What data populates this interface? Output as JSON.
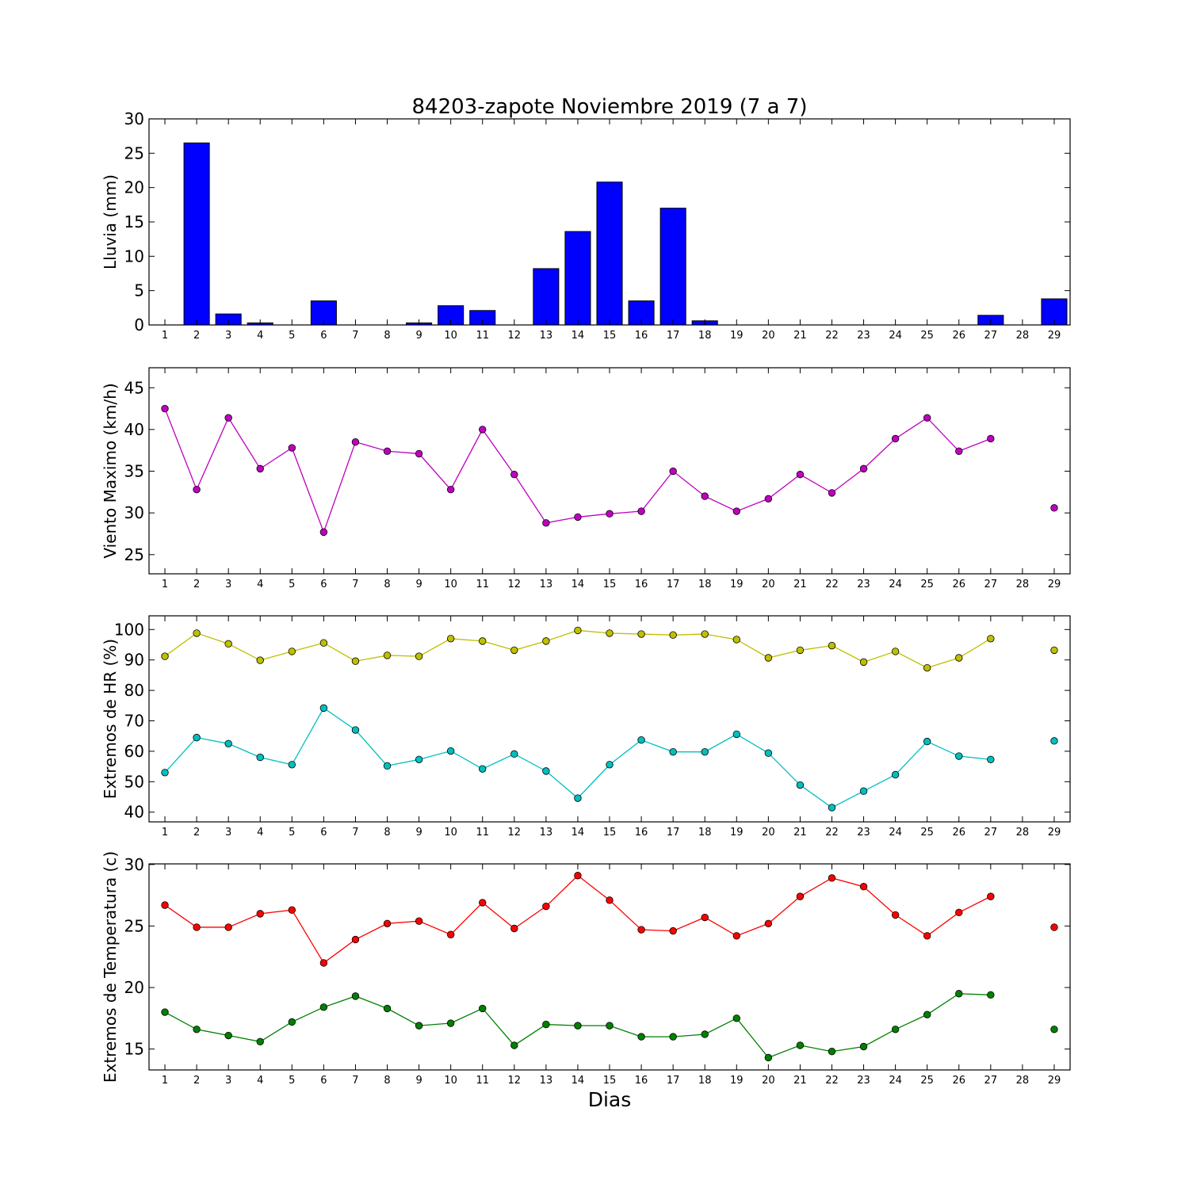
{
  "title": "84203-zapote Noviembre 2019  (7 a 7)",
  "xlabel": "Dias",
  "days": [
    1,
    2,
    3,
    4,
    5,
    6,
    7,
    8,
    9,
    10,
    11,
    12,
    13,
    14,
    15,
    16,
    17,
    18,
    19,
    20,
    21,
    22,
    23,
    24,
    25,
    26,
    27,
    28,
    29
  ],
  "colors": {
    "rain": "#0000ff",
    "wind": "#bf00bf",
    "hr_max": "#bfbf00",
    "hr_min": "#00bfbf",
    "temp_max": "#ff0000",
    "temp_min": "#008000"
  },
  "chart_data": [
    {
      "type": "bar",
      "title": "84203-zapote Noviembre 2019  (7 a 7)",
      "ylabel": "Lluvia (mm)",
      "xlabel": "",
      "ylim": [
        0,
        30
      ],
      "yticks": [
        0,
        5,
        10,
        15,
        20,
        25,
        30
      ],
      "categories": [
        1,
        2,
        3,
        4,
        5,
        6,
        7,
        8,
        9,
        10,
        11,
        12,
        13,
        14,
        15,
        16,
        17,
        18,
        19,
        20,
        21,
        22,
        23,
        24,
        25,
        26,
        27,
        28,
        29
      ],
      "values": [
        0,
        26.5,
        1.6,
        0.3,
        0,
        3.5,
        0,
        0,
        0.3,
        2.8,
        2.1,
        0,
        8.2,
        13.6,
        20.8,
        3.5,
        17.0,
        0.6,
        0,
        0,
        0,
        0,
        0,
        0,
        0,
        0,
        1.4,
        0,
        3.8
      ]
    },
    {
      "type": "line",
      "ylabel": "Viento Maximo (km/h)",
      "xlabel": "",
      "ylim": [
        22.7,
        47.4
      ],
      "yticks": [
        25,
        30,
        35,
        40,
        45
      ],
      "x": [
        1,
        2,
        3,
        4,
        5,
        6,
        7,
        8,
        9,
        10,
        11,
        12,
        13,
        14,
        15,
        16,
        17,
        18,
        19,
        20,
        21,
        22,
        23,
        24,
        25,
        26,
        27,
        28,
        29
      ],
      "series": [
        {
          "values": [
            42.5,
            32.8,
            41.4,
            35.3,
            37.8,
            27.7,
            38.5,
            37.4,
            37.1,
            32.8,
            40.0,
            34.6,
            28.8,
            29.5,
            29.9,
            30.2,
            35.0,
            32.0,
            30.2,
            31.7,
            34.6,
            32.4,
            35.3,
            38.9,
            41.4,
            37.4,
            38.9,
            null,
            30.6
          ]
        }
      ]
    },
    {
      "type": "line",
      "ylabel": "Extremos de HR (%)",
      "xlabel": "",
      "ylim": [
        36.8,
        104.5
      ],
      "yticks": [
        40,
        50,
        60,
        70,
        80,
        90,
        100
      ],
      "x": [
        1,
        2,
        3,
        4,
        5,
        6,
        7,
        8,
        9,
        10,
        11,
        12,
        13,
        14,
        15,
        16,
        17,
        18,
        19,
        20,
        21,
        22,
        23,
        24,
        25,
        26,
        27,
        28,
        29
      ],
      "series": [
        {
          "values": [
            91.2,
            98.8,
            95.3,
            89.9,
            92.8,
            95.6,
            89.6,
            91.5,
            91.2,
            97.0,
            96.2,
            93.2,
            96.2,
            99.7,
            98.8,
            98.5,
            98.2,
            98.5,
            96.7,
            90.7,
            93.2,
            94.7,
            89.3,
            92.8,
            87.4,
            90.7,
            97.0,
            null,
            93.2
          ]
        },
        {
          "values": [
            53.0,
            64.5,
            62.5,
            58.0,
            55.6,
            74.2,
            67.0,
            55.2,
            57.3,
            60.1,
            54.2,
            59.1,
            53.5,
            44.6,
            55.6,
            63.7,
            59.8,
            59.8,
            65.6,
            59.4,
            48.9,
            41.5,
            46.9,
            52.3,
            63.2,
            58.4,
            57.3,
            null,
            63.4
          ]
        }
      ]
    },
    {
      "type": "line",
      "ylabel": "Extremos de Temperatura (c)",
      "xlabel": "Dias",
      "ylim": [
        13.3,
        30.05
      ],
      "yticks": [
        15,
        20,
        25,
        30
      ],
      "x": [
        1,
        2,
        3,
        4,
        5,
        6,
        7,
        8,
        9,
        10,
        11,
        12,
        13,
        14,
        15,
        16,
        17,
        18,
        19,
        20,
        21,
        22,
        23,
        24,
        25,
        26,
        27,
        28,
        29
      ],
      "series": [
        {
          "values": [
            26.7,
            24.9,
            24.9,
            26.0,
            26.3,
            22.0,
            23.9,
            25.2,
            25.4,
            24.3,
            26.9,
            24.8,
            26.6,
            29.1,
            27.1,
            24.7,
            24.6,
            25.7,
            24.2,
            25.2,
            27.4,
            28.9,
            28.2,
            25.9,
            24.2,
            26.1,
            27.4,
            null,
            24.9
          ]
        },
        {
          "values": [
            18.0,
            16.6,
            16.1,
            15.6,
            17.2,
            18.4,
            19.3,
            18.3,
            16.9,
            17.1,
            18.3,
            15.3,
            17.0,
            16.9,
            16.9,
            16.0,
            16.0,
            16.2,
            17.5,
            14.3,
            15.3,
            14.8,
            15.2,
            16.6,
            17.8,
            19.5,
            19.4,
            null,
            16.6
          ]
        }
      ]
    }
  ]
}
